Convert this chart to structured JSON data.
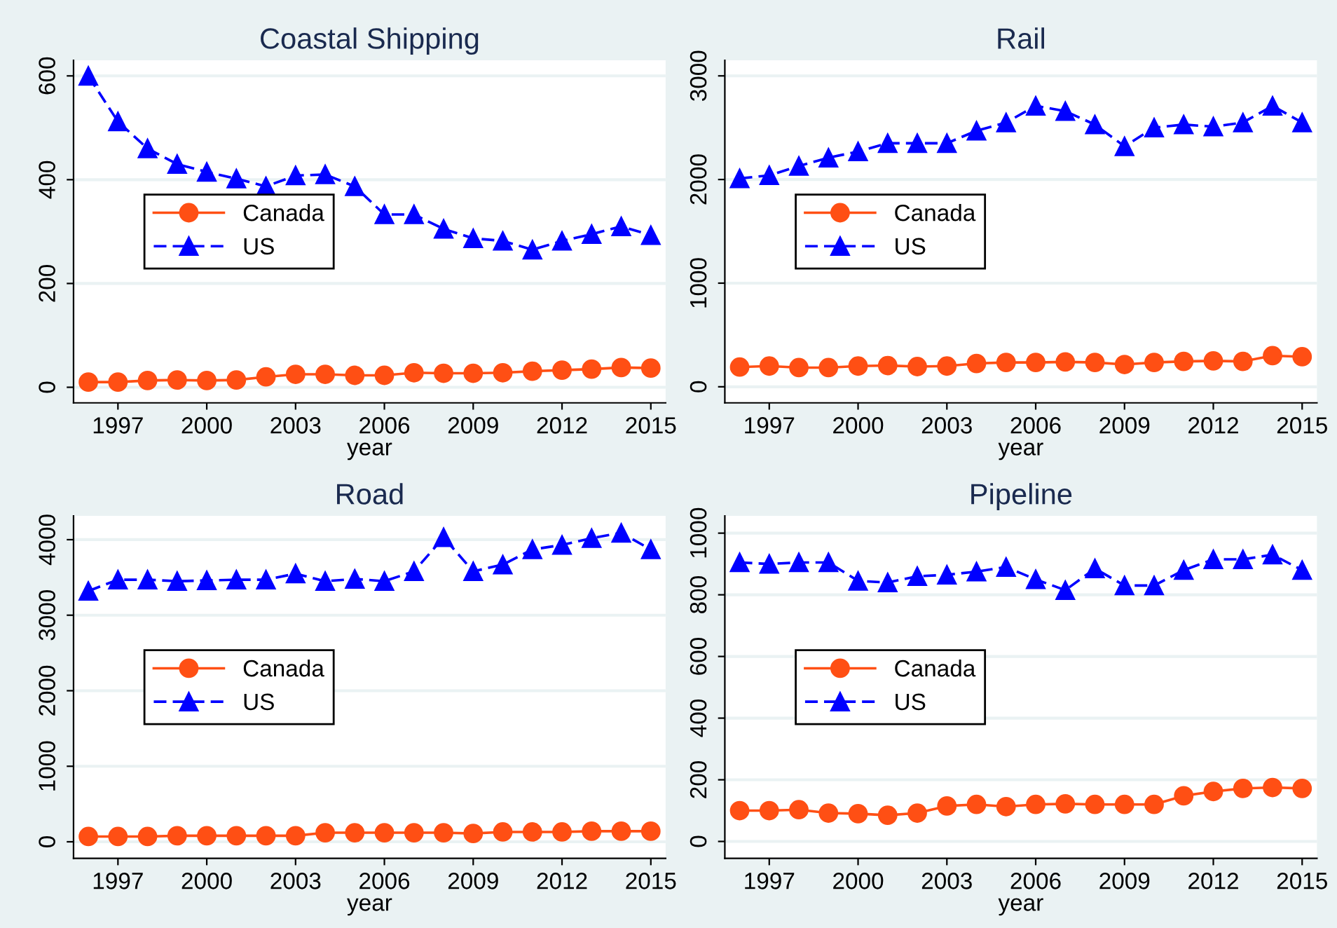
{
  "chart_data": [
    {
      "type": "line",
      "title": "Coastal Shipping",
      "xlabel": "year",
      "x": [
        1996,
        1997,
        1998,
        1999,
        2000,
        2001,
        2002,
        2003,
        2004,
        2005,
        2006,
        2007,
        2008,
        2009,
        2010,
        2011,
        2012,
        2013,
        2014,
        2015
      ],
      "xlim": [
        1995.5,
        2015.5
      ],
      "xticks": [
        1997,
        2000,
        2003,
        2006,
        2009,
        2012,
        2015
      ],
      "ylim": [
        -30,
        630
      ],
      "yticks": [
        0,
        200,
        400,
        600
      ],
      "grid": "y",
      "legend": "left",
      "series": [
        {
          "name": "Canada",
          "color": "#ff4f14",
          "marker": "circle",
          "line_style": "solid",
          "values": [
            10,
            10,
            13,
            14,
            13,
            14,
            20,
            25,
            25,
            23,
            23,
            28,
            27,
            27,
            28,
            31,
            33,
            35,
            38,
            37
          ]
        },
        {
          "name": "US",
          "color": "#0000ff",
          "marker": "triangle",
          "line_style": "dashed",
          "values": [
            600,
            512,
            460,
            430,
            415,
            402,
            387,
            408,
            410,
            387,
            333,
            333,
            305,
            287,
            282,
            265,
            282,
            295,
            310,
            293
          ]
        }
      ]
    },
    {
      "type": "line",
      "title": "Rail",
      "xlabel": "year",
      "x": [
        1996,
        1997,
        1998,
        1999,
        2000,
        2001,
        2002,
        2003,
        2004,
        2005,
        2006,
        2007,
        2008,
        2009,
        2010,
        2011,
        2012,
        2013,
        2014,
        2015
      ],
      "xlim": [
        1995.5,
        2015.5
      ],
      "xticks": [
        1997,
        2000,
        2003,
        2006,
        2009,
        2012,
        2015
      ],
      "ylim": [
        -155,
        3150
      ],
      "yticks": [
        0,
        1000,
        2000,
        3000
      ],
      "grid": "y",
      "legend": "left",
      "series": [
        {
          "name": "Canada",
          "color": "#ff4f14",
          "marker": "circle",
          "line_style": "solid",
          "values": [
            190,
            200,
            185,
            185,
            200,
            205,
            195,
            200,
            225,
            235,
            235,
            240,
            235,
            215,
            235,
            245,
            250,
            245,
            300,
            290
          ]
        },
        {
          "name": "US",
          "color": "#0000ff",
          "marker": "triangle",
          "line_style": "dashed",
          "values": [
            2010,
            2040,
            2130,
            2210,
            2270,
            2350,
            2350,
            2350,
            2470,
            2550,
            2710,
            2660,
            2530,
            2320,
            2500,
            2530,
            2510,
            2550,
            2710,
            2550
          ]
        }
      ]
    },
    {
      "type": "line",
      "title": "Road",
      "xlabel": "year",
      "x": [
        1996,
        1997,
        1998,
        1999,
        2000,
        2001,
        2002,
        2003,
        2004,
        2005,
        2006,
        2007,
        2008,
        2009,
        2010,
        2011,
        2012,
        2013,
        2014,
        2015
      ],
      "xlim": [
        1995.5,
        2015.5
      ],
      "xticks": [
        1997,
        2000,
        2003,
        2006,
        2009,
        2012,
        2015
      ],
      "ylim": [
        -220,
        4315
      ],
      "yticks": [
        0,
        1000,
        2000,
        3000,
        4000
      ],
      "grid": "y",
      "legend": "left",
      "series": [
        {
          "name": "Canada",
          "color": "#ff4f14",
          "marker": "circle",
          "line_style": "solid",
          "values": [
            70,
            70,
            70,
            80,
            80,
            80,
            80,
            80,
            120,
            120,
            120,
            120,
            120,
            110,
            130,
            130,
            130,
            140,
            140,
            140
          ]
        },
        {
          "name": "US",
          "color": "#0000ff",
          "marker": "triangle",
          "line_style": "dashed",
          "values": [
            3320,
            3470,
            3470,
            3450,
            3460,
            3470,
            3470,
            3550,
            3450,
            3480,
            3450,
            3580,
            4030,
            3580,
            3670,
            3870,
            3930,
            4020,
            4090,
            3870
          ]
        }
      ]
    },
    {
      "type": "line",
      "title": "Pipeline",
      "xlabel": "year",
      "x": [
        1996,
        1997,
        1998,
        1999,
        2000,
        2001,
        2002,
        2003,
        2004,
        2005,
        2006,
        2007,
        2008,
        2009,
        2010,
        2011,
        2012,
        2013,
        2014,
        2015
      ],
      "xlim": [
        1995.5,
        2015.5
      ],
      "xticks": [
        1997,
        2000,
        2003,
        2006,
        2009,
        2012,
        2015
      ],
      "ylim": [
        -55,
        1056
      ],
      "yticks": [
        0,
        200,
        400,
        600,
        800,
        1000
      ],
      "grid": "y",
      "legend": "left",
      "series": [
        {
          "name": "Canada",
          "color": "#ff4f14",
          "marker": "circle",
          "line_style": "solid",
          "values": [
            100,
            100,
            103,
            92,
            90,
            85,
            92,
            115,
            120,
            113,
            120,
            122,
            120,
            120,
            120,
            148,
            162,
            172,
            175,
            172
          ]
        },
        {
          "name": "US",
          "color": "#0000ff",
          "marker": "triangle",
          "line_style": "dashed",
          "values": [
            905,
            900,
            905,
            905,
            845,
            840,
            860,
            865,
            875,
            890,
            850,
            815,
            885,
            830,
            830,
            880,
            915,
            915,
            930,
            880
          ]
        }
      ]
    }
  ]
}
